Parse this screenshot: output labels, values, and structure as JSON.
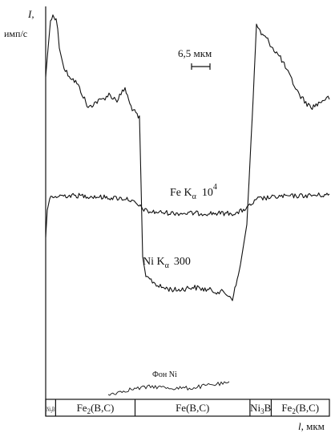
{
  "chart_data": {
    "type": "line",
    "title": "",
    "ylabel": "I,",
    "ylabel_units": "имп/с",
    "xlabel": "l, мкм",
    "scale_bar": "6,5 мкм",
    "series": [
      {
        "name": "Fe Kα 10⁴",
        "label_main": "Fe K",
        "label_sub": "α",
        "label_factor": "10",
        "label_sup": "4",
        "description": "nearly flat level across all phases, slightly lower in Fe(B,C)"
      },
      {
        "name": "Ni Kα 300",
        "label_main": "Ni K",
        "label_sub": "α",
        "label_factor": "300",
        "description": "high in Ni-containing side regions, drops to low level in Fe(B,C)"
      },
      {
        "name": "Фон Ni",
        "label_main": "Фон Ni",
        "description": "background level"
      }
    ],
    "phases": [
      {
        "label": "Ni₃B",
        "main": "Ni",
        "sub": "3",
        "tail": "B"
      },
      {
        "label": "Fe2(B,C)",
        "main": "Fe",
        "sub": "2",
        "tail": "(B,C)"
      },
      {
        "label": "Fe(B,C)",
        "main": "Fe(B,C)",
        "sub": "",
        "tail": ""
      },
      {
        "label": "Ni₃B",
        "main": "Ni",
        "sub": "3",
        "tail": "B"
      },
      {
        "label": "Fe2(B,C)",
        "main": "Fe",
        "sub": "2",
        "tail": "(B,C)"
      }
    ],
    "phase_bounds": [
      0,
      3.5,
      31.5,
      72,
      79.5,
      100
    ],
    "y_axis": {
      "ticks": [],
      "gridlines": false
    },
    "x_axis": {
      "ticks": [],
      "gridlines": false
    },
    "legend": "none",
    "grid": false
  }
}
